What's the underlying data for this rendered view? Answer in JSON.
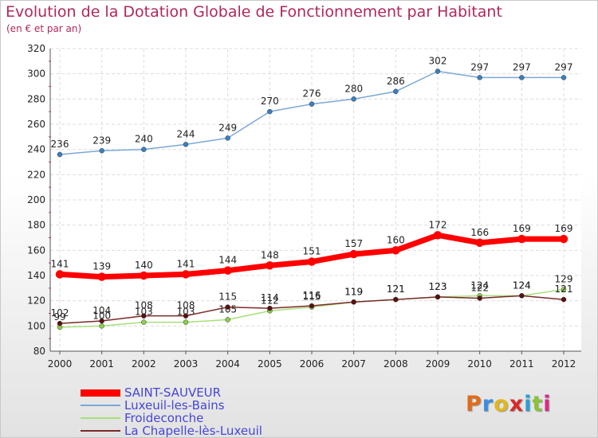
{
  "title": "Evolution de la Dotation Globale de Fonctionnement par Habitant",
  "subtitle": "(en € et par an)",
  "logo": {
    "text": "Proxiti",
    "letter_colors": [
      "#e06c1c",
      "#3a8ee0",
      "#e0b81c",
      "#d92a2a",
      "#2a9ed9",
      "#8ac23a",
      "#d92a8a"
    ]
  },
  "chart_data": {
    "type": "line",
    "title": "Evolution de la Dotation Globale de Fonctionnement par Habitant",
    "subtitle": "(en € et par an)",
    "xlabel": "",
    "ylabel": "",
    "x": [
      "2000",
      "2001",
      "2002",
      "2003",
      "2004",
      "2005",
      "2006",
      "2007",
      "2008",
      "2009",
      "2010",
      "2011",
      "2012"
    ],
    "ylim": [
      80,
      320
    ],
    "yticks": [
      80,
      100,
      120,
      140,
      160,
      180,
      200,
      220,
      240,
      260,
      280,
      300,
      320
    ],
    "grid": "horizontal",
    "legend_position": "bottom-left",
    "series": [
      {
        "name": "SAINT-SAUVEUR",
        "color": "#ff0000",
        "marker": "#ff0000",
        "width": 7,
        "values": [
          141,
          139,
          140,
          141,
          144,
          148,
          151,
          157,
          160,
          172,
          166,
          169,
          169
        ],
        "labels": [
          "141",
          "139",
          "140",
          "141",
          "144",
          "148",
          "151",
          "157",
          "160",
          "172",
          "166",
          "169",
          "169"
        ]
      },
      {
        "name": "Luxeuil-les-Bains",
        "color": "#7aa8d8",
        "marker": "#3d7fbf",
        "width": 1.5,
        "values": [
          236,
          239,
          240,
          244,
          249,
          270,
          276,
          280,
          286,
          302,
          297,
          297,
          297
        ],
        "labels": [
          "236",
          "239",
          "240",
          "244",
          "249",
          "270",
          "276",
          "280",
          "286",
          "302",
          "297",
          "297",
          "297"
        ]
      },
      {
        "name": "Froideconche",
        "color": "#a8e078",
        "marker": "#8ad04a",
        "width": 1.5,
        "values": [
          99,
          100,
          103,
          103,
          105,
          112,
          115,
          119,
          121,
          123,
          124,
          124,
          129
        ],
        "labels": [
          "99",
          "100",
          "103",
          "103",
          "105",
          "112",
          "115",
          "119",
          "121",
          "123",
          "124",
          "124",
          "129"
        ]
      },
      {
        "name": "La Chapelle-lès-Luxeuil",
        "color": "#7a2a2a",
        "marker": "#5a1010",
        "width": 1.5,
        "values": [
          102,
          104,
          108,
          108,
          115,
          114,
          116,
          119,
          121,
          123,
          122,
          124,
          121
        ],
        "labels": [
          "102",
          "104",
          "108",
          "108",
          "115",
          "114",
          "116",
          "119",
          "121",
          "123",
          "122",
          "124",
          "121"
        ]
      }
    ]
  }
}
